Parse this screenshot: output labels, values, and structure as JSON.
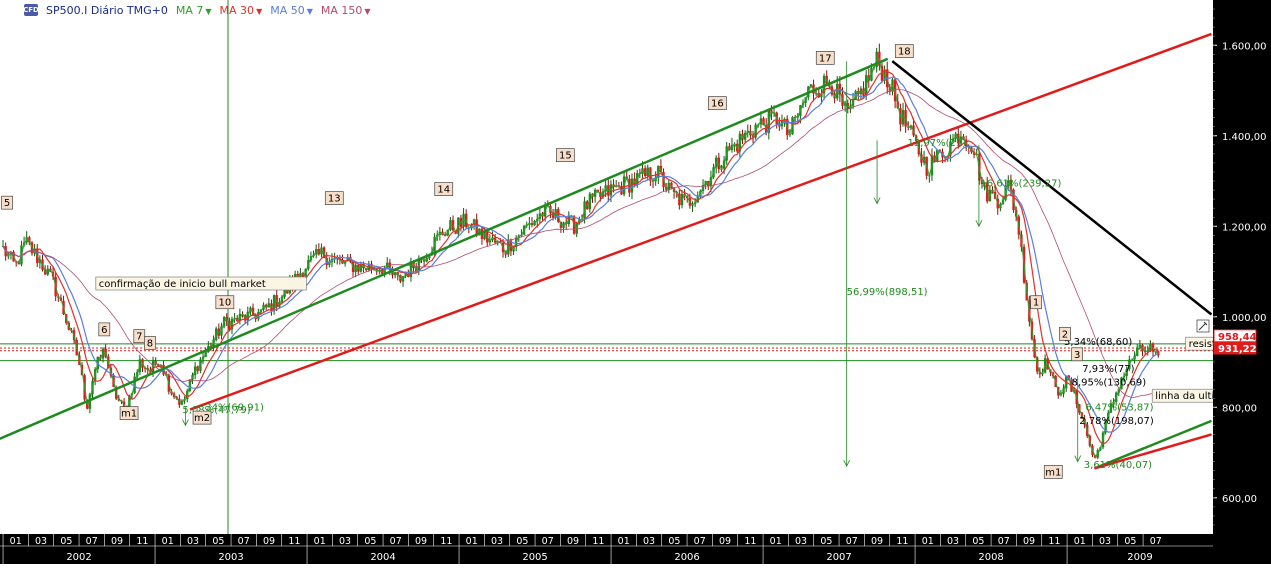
{
  "header": {
    "logo_text": "CFD",
    "instrument": "SP500.I Diário TMG+0",
    "ma": [
      {
        "label": "MA 7",
        "color": "#2e9e2e"
      },
      {
        "label": "MA 30",
        "color": "#e0302b"
      },
      {
        "label": "MA 50",
        "color": "#5a7ee0"
      },
      {
        "label": "MA 150",
        "color": "#b24b6e"
      }
    ]
  },
  "chart_data": {
    "type": "candlestick",
    "ylim": [
      520,
      1700
    ],
    "y_ticks": [
      600,
      800,
      1000,
      1200,
      1400,
      1600
    ],
    "y_tick_labels": [
      "600,00",
      "800,00",
      "1.000,00",
      "1.200,00",
      "1.400,00",
      "1.600,00"
    ],
    "months": [
      "01",
      "03",
      "05",
      "07",
      "09",
      "11",
      "01",
      "03",
      "05",
      "07",
      "09",
      "11",
      "01",
      "03",
      "05",
      "07",
      "09",
      "11",
      "01",
      "03",
      "05",
      "07",
      "09",
      "11",
      "01",
      "03",
      "05",
      "07",
      "09",
      "11",
      "01",
      "03",
      "05",
      "07",
      "09",
      "11",
      "01",
      "03",
      "05",
      "07",
      "09",
      "11",
      "01",
      "03",
      "05",
      "07"
    ],
    "years": [
      "2002",
      "2003",
      "2004",
      "2005",
      "2006",
      "2007",
      "2008",
      "2009"
    ],
    "price_path": [
      [
        2002.0,
        1150
      ],
      [
        2002.08,
        1110
      ],
      [
        2002.15,
        1165
      ],
      [
        2002.25,
        1120
      ],
      [
        2002.33,
        1075
      ],
      [
        2002.42,
        990
      ],
      [
        2002.5,
        900
      ],
      [
        2002.55,
        800
      ],
      [
        2002.6,
        880
      ],
      [
        2002.67,
        930
      ],
      [
        2002.72,
        840
      ],
      [
        2002.8,
        790
      ],
      [
        2002.9,
        900
      ],
      [
        2002.97,
        880
      ],
      [
        2003.03,
        910
      ],
      [
        2003.1,
        840
      ],
      [
        2003.18,
        805
      ],
      [
        2003.27,
        890
      ],
      [
        2003.35,
        930
      ],
      [
        2003.45,
        985
      ],
      [
        2003.55,
        995
      ],
      [
        2003.7,
        1010
      ],
      [
        2003.85,
        1050
      ],
      [
        2003.98,
        1110
      ],
      [
        2004.1,
        1140
      ],
      [
        2004.2,
        1120
      ],
      [
        2004.35,
        1110
      ],
      [
        2004.5,
        1110
      ],
      [
        2004.6,
        1080
      ],
      [
        2004.75,
        1130
      ],
      [
        2004.9,
        1190
      ],
      [
        2005.05,
        1210
      ],
      [
        2005.15,
        1180
      ],
      [
        2005.3,
        1150
      ],
      [
        2005.45,
        1200
      ],
      [
        2005.55,
        1230
      ],
      [
        2005.65,
        1220
      ],
      [
        2005.75,
        1200
      ],
      [
        2005.85,
        1250
      ],
      [
        2006.0,
        1280
      ],
      [
        2006.15,
        1300
      ],
      [
        2006.3,
        1320
      ],
      [
        2006.4,
        1270
      ],
      [
        2006.5,
        1250
      ],
      [
        2006.6,
        1290
      ],
      [
        2006.75,
        1360
      ],
      [
        2006.95,
        1420
      ],
      [
        2007.1,
        1440
      ],
      [
        2007.17,
        1400
      ],
      [
        2007.3,
        1500
      ],
      [
        2007.45,
        1520
      ],
      [
        2007.55,
        1440
      ],
      [
        2007.62,
        1480
      ],
      [
        2007.75,
        1565
      ],
      [
        2007.83,
        1520
      ],
      [
        2007.9,
        1450
      ],
      [
        2008.0,
        1380
      ],
      [
        2008.08,
        1330
      ],
      [
        2008.2,
        1370
      ],
      [
        2008.3,
        1410
      ],
      [
        2008.38,
        1380
      ],
      [
        2008.45,
        1280
      ],
      [
        2008.55,
        1260
      ],
      [
        2008.62,
        1290
      ],
      [
        2008.68,
        1200
      ],
      [
        2008.75,
        1000
      ],
      [
        2008.8,
        880
      ],
      [
        2008.87,
        900
      ],
      [
        2008.93,
        830
      ],
      [
        2009.0,
        860
      ],
      [
        2009.08,
        800
      ],
      [
        2009.18,
        680
      ],
      [
        2009.27,
        780
      ],
      [
        2009.35,
        860
      ],
      [
        2009.45,
        920
      ],
      [
        2009.55,
        930
      ],
      [
        2009.6,
        900
      ]
    ],
    "moving_averages": [
      {
        "name": "MA 7",
        "color": "#2e9e2e",
        "window": 7
      },
      {
        "name": "MA 30",
        "color": "#e0302b",
        "window": 30
      },
      {
        "name": "MA 50",
        "color": "#5a7ee0",
        "window": 50
      },
      {
        "name": "MA 150",
        "color": "#b24b6e",
        "window": 150
      }
    ],
    "trendlines": [
      {
        "color": "#1f8a1f",
        "from": [
          2001.0,
          590
        ],
        "to": [
          2007.82,
          1570
        ]
      },
      {
        "color": "#e01b1b",
        "from": [
          2003.23,
          795
        ],
        "to": [
          2009.95,
          1625
        ]
      },
      {
        "color": "#000000",
        "from": [
          2007.85,
          1565
        ],
        "to": [
          2009.95,
          1005
        ]
      },
      {
        "color": "#1f8a1f",
        "from": [
          2009.18,
          665
        ],
        "to": [
          2009.95,
          770
        ]
      },
      {
        "color": "#e01b1b",
        "from": [
          2009.18,
          665
        ],
        "to": [
          2009.95,
          740
        ]
      }
    ],
    "horizontal_lines": [
      {
        "value": 940,
        "color": "#1f8a1f",
        "style": "solid"
      },
      {
        "value": 925,
        "color": "#e01b1b",
        "style": "dotted"
      },
      {
        "value": 931,
        "color": "#e01b1b",
        "style": "dotted"
      },
      {
        "value": 903,
        "color": "#1f8a1f",
        "style": "solid"
      }
    ],
    "price_tags": [
      {
        "label": "958,44",
        "value": 958,
        "bg": "#ffffff",
        "fg": "#e01b1b",
        "border": "#e01b1b"
      },
      {
        "label": "931,22",
        "value": 931,
        "bg": "#e01b1b",
        "fg": "#ffffff",
        "border": "#e01b1b"
      }
    ],
    "wave_labels": [
      {
        "text": "5",
        "t": 2001.99,
        "v": 1240
      },
      {
        "text": "6",
        "t": 2002.63,
        "v": 960
      },
      {
        "text": "7",
        "t": 2002.86,
        "v": 945
      },
      {
        "text": "8",
        "t": 2002.93,
        "v": 930
      },
      {
        "text": "10",
        "t": 2003.4,
        "v": 1020
      },
      {
        "text": "13",
        "t": 2004.12,
        "v": 1250
      },
      {
        "text": "14",
        "t": 2004.84,
        "v": 1270
      },
      {
        "text": "15",
        "t": 2005.64,
        "v": 1345
      },
      {
        "text": "16",
        "t": 2006.64,
        "v": 1460
      },
      {
        "text": "17",
        "t": 2007.35,
        "v": 1560
      },
      {
        "text": "18",
        "t": 2007.87,
        "v": 1575
      },
      {
        "text": "1",
        "t": 2008.76,
        "v": 1020
      },
      {
        "text": "2",
        "t": 2008.95,
        "v": 950
      },
      {
        "text": "3",
        "t": 2009.03,
        "v": 905
      },
      {
        "text": "m1",
        "t": 2002.77,
        "v": 775
      },
      {
        "text": "m2",
        "t": 2003.25,
        "v": 765
      },
      {
        "text": "m1",
        "t": 2008.85,
        "v": 645
      }
    ],
    "annotations": [
      {
        "text": "confirmação de inicio bull market",
        "t": 2002.63,
        "v": 1068,
        "color": "#000000",
        "boxed": true
      },
      {
        "text": "56,99%(898,51)",
        "t": 2007.55,
        "v": 1050,
        "color": "#1f8a1f"
      },
      {
        "text": "16,61%(239,27)",
        "t": 2008.43,
        "v": 1290,
        "color": "#1f8a1f"
      },
      {
        "text": "13,97%(21)",
        "t": 2007.95,
        "v": 1380,
        "color": "#1f8a1f"
      },
      {
        "text": "5,34%(68,60)",
        "t": 2008.98,
        "v": 940,
        "color": "#000000"
      },
      {
        "text": "7,93%(77)",
        "t": 2009.1,
        "v": 880,
        "color": "#000000"
      },
      {
        "text": "8,95%(130,69)",
        "t": 2009.03,
        "v": 850,
        "color": "#000000"
      },
      {
        "text": "6,47%(53,87)",
        "t": 2009.12,
        "v": 795,
        "color": "#1f8a1f"
      },
      {
        "text": "2,78%(198,07)",
        "t": 2009.08,
        "v": 765,
        "color": "#000000"
      },
      {
        "text": "3,61%(40,07)",
        "t": 2009.11,
        "v": 668,
        "color": "#1f8a1f"
      },
      {
        "text": "5,08%(47,79)",
        "t": 2003.18,
        "v": 790,
        "color": "#1f8a1f"
      },
      {
        "text": "34%(69,91)",
        "t": 2003.33,
        "v": 795,
        "color": "#1f8a1f"
      },
      {
        "text": "resistencia",
        "t": 2009.8,
        "v": 935,
        "color": "#000000",
        "boxed": true
      },
      {
        "text": "linha da ultima i",
        "t": 2009.58,
        "v": 820,
        "color": "#000000",
        "boxed": true
      }
    ]
  }
}
